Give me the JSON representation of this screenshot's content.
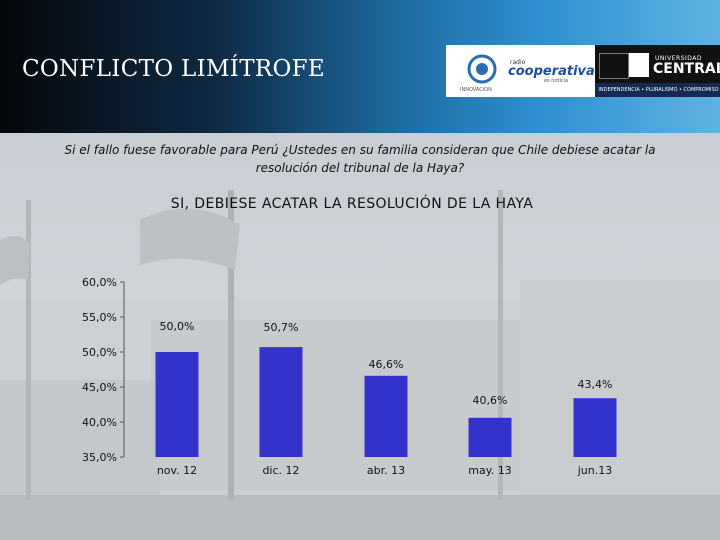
{
  "header": {
    "title": "CONFLICTO LIMÍTROFE",
    "logos": {
      "institution_caption": "INNOVACION",
      "radio_small": "radio",
      "radio_name": "cooperativa",
      "radio_sub": "es noticia",
      "university_top": "UNIVERSIDAD",
      "university_name": "CENTRAL",
      "university_tagline": "INDEPENDENCIA • PLURALISMO • COMPROMISO"
    }
  },
  "question": "Si el fallo fuese favorable para Perú ¿Ustedes en su familia consideran que Chile debiese acatar la resolución del tribunal de la Haya?",
  "chart_data": {
    "type": "bar",
    "title": "SI, DEBIESE ACATAR LA RESOLUCIÓN DE LA HAYA",
    "categories": [
      "nov. 12",
      "dic. 12",
      "abr. 13",
      "may. 13",
      "jun.13"
    ],
    "values": [
      50.0,
      50.7,
      46.6,
      40.6,
      43.4
    ],
    "value_labels": [
      "50,0%",
      "50,7%",
      "46,6%",
      "40,6%",
      "43,4%"
    ],
    "ylim": [
      35,
      60
    ],
    "y_ticks": [
      60,
      55,
      50,
      45,
      40,
      35
    ],
    "y_tick_labels": [
      "60,0%",
      "55,0%",
      "50,0%",
      "45,0%",
      "40,0%",
      "35,0%"
    ],
    "bar_color": "#3333cc",
    "grid": false,
    "legend": "none"
  }
}
